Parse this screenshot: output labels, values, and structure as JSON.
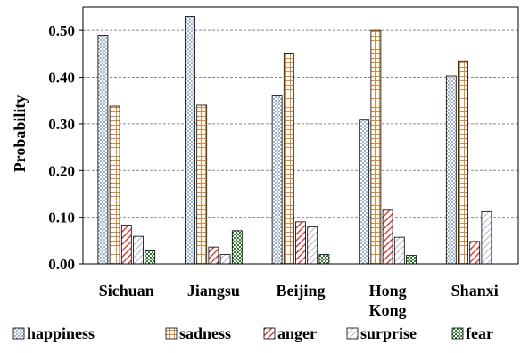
{
  "chart_data": {
    "type": "bar",
    "ylabel": "Probability",
    "xlabel": "",
    "ylim": [
      0,
      0.55
    ],
    "yticks": [
      "0.00",
      "0.10",
      "0.20",
      "0.30",
      "0.40",
      "0.50"
    ],
    "grid": true,
    "legend_position": "bottom",
    "categories": [
      [
        "Sichuan"
      ],
      [
        "Jiangsu"
      ],
      [
        "Beijing"
      ],
      [
        "Hong",
        "Kong"
      ],
      [
        "Shanxi"
      ]
    ],
    "series": [
      {
        "name": "happiness",
        "color": "#6b8fb3",
        "pattern": "dots",
        "values": [
          0.49,
          0.53,
          0.36,
          0.308,
          0.403
        ]
      },
      {
        "name": "sadness",
        "color": "#d98a3a",
        "pattern": "grid",
        "values": [
          0.338,
          0.34,
          0.45,
          0.5,
          0.435
        ]
      },
      {
        "name": "anger",
        "color": "#d42a2a",
        "pattern": "diag",
        "values": [
          0.083,
          0.036,
          0.09,
          0.115,
          0.048
        ]
      },
      {
        "name": "surprise",
        "color": "#8a78b8",
        "pattern": "diag-light",
        "values": [
          0.059,
          0.02,
          0.079,
          0.057,
          0.112
        ]
      },
      {
        "name": "fear",
        "color": "#2e7d32",
        "pattern": "checker",
        "values": [
          0.028,
          0.071,
          0.02,
          0.018,
          0.0
        ]
      }
    ]
  }
}
